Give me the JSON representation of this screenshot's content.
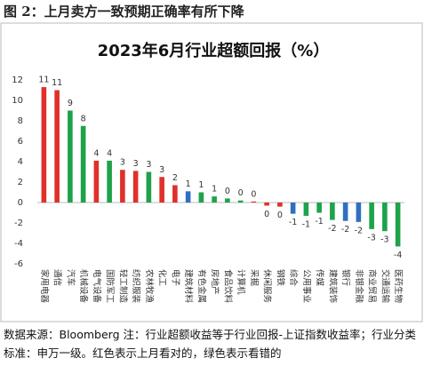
{
  "header": {
    "title": "图 2：上月卖方一致预期正确率有所下降"
  },
  "chart_data": {
    "type": "bar",
    "title": "2023年6月行业超额回报（%）",
    "categories": [
      "家用电器",
      "通信",
      "汽车",
      "机械设备",
      "电气设备",
      "国防军工",
      "轻工制造",
      "纺织服装",
      "农林牧渔",
      "化工",
      "电子",
      "建筑材料",
      "有色金属",
      "房地产",
      "食品饮料",
      "计算机",
      "采掘",
      "休闲服务",
      "钢铁",
      "综合",
      "公用事业",
      "传媒",
      "建筑装饰",
      "银行",
      "非银金融",
      "商业贸易",
      "交通运输",
      "医药生物"
    ],
    "values": [
      11.3,
      11.0,
      9.0,
      7.5,
      4.1,
      4.1,
      3.2,
      3.1,
      3.0,
      2.5,
      1.7,
      1.1,
      1.0,
      0.6,
      0.4,
      0.2,
      0.1,
      -0.3,
      -0.4,
      -1.1,
      -1.3,
      -1.0,
      -1.7,
      -1.8,
      -1.9,
      -2.6,
      -2.8,
      -4.3
    ],
    "value_labels": [
      "11",
      "11",
      "9",
      "8",
      "4",
      "4",
      "3",
      "3",
      "3",
      "3",
      "2",
      "1",
      "1",
      "1",
      "0",
      "0",
      "0",
      "0",
      "0",
      "-1",
      "-1",
      "-1",
      "-2",
      "-2",
      "-2",
      "-3",
      "-3",
      "-4"
    ],
    "colors": [
      "#e0302a",
      "#e0302a",
      "#1ea24a",
      "#1ea24a",
      "#e0302a",
      "#1ea24a",
      "#e0302a",
      "#e0302a",
      "#1ea24a",
      "#e0302a",
      "#e0302a",
      "#2f6fc0",
      "#1ea24a",
      "#1ea24a",
      "#1ea24a",
      "#1ea24a",
      "#e0302a",
      "#e0302a",
      "#e0302a",
      "#2f6fc0",
      "#1ea24a",
      "#1ea24a",
      "#1ea24a",
      "#2f6fc0",
      "#2f6fc0",
      "#1ea24a",
      "#1ea24a",
      "#1ea24a"
    ],
    "ylim": [
      -6,
      12
    ],
    "yticks": [
      -6,
      -4,
      -2,
      0,
      2,
      4,
      6,
      8,
      10,
      12
    ],
    "grid": false
  },
  "footer": {
    "text": "数据来源：Bloomberg  注：行业超额收益等于行业回报-上证指数收益率；行业分类标准：申万一级。红色表示上月看对的，绿色表示看错的"
  }
}
